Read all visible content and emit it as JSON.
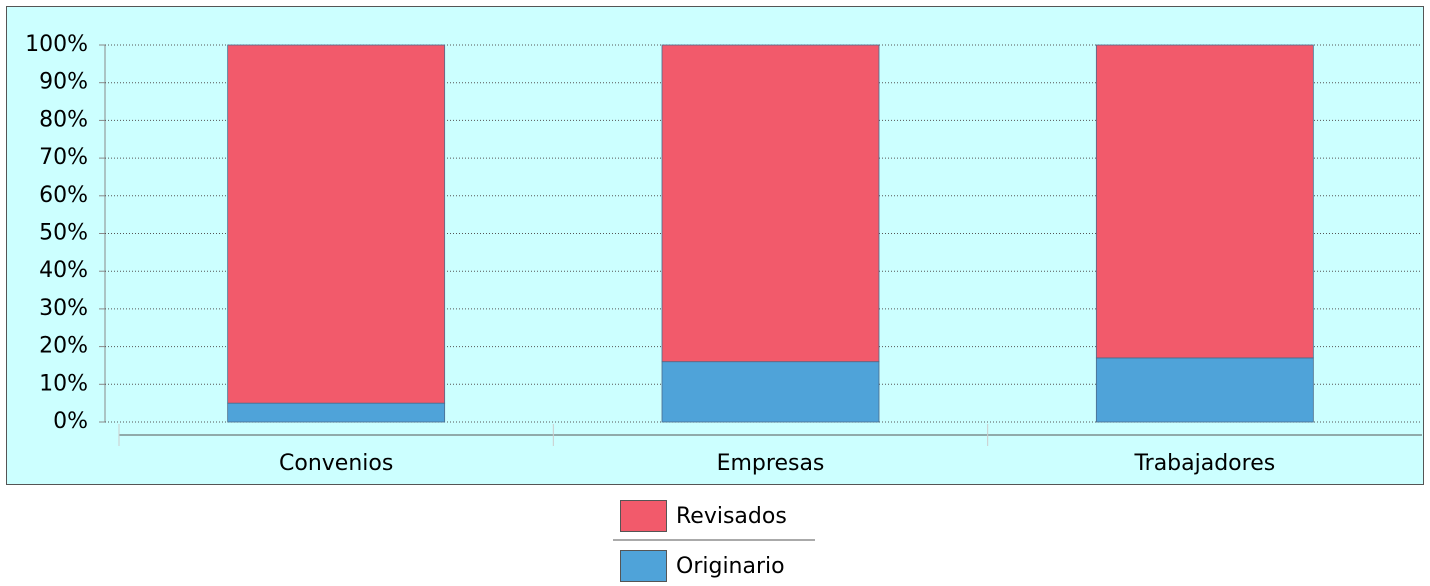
{
  "chart_data": {
    "type": "stacked_bar",
    "categories": [
      "Convenios",
      "Empresas",
      "Trabajadores"
    ],
    "series": [
      {
        "name": "Originario",
        "color": "#4fa3d9",
        "values": [
          5,
          16,
          17
        ]
      },
      {
        "name": "Revisados",
        "color": "#f25a6b",
        "values": [
          95,
          84,
          83
        ]
      }
    ],
    "ylim": [
      0,
      100
    ],
    "yticks": [
      {
        "value": 0,
        "label": "0%"
      },
      {
        "value": 10,
        "label": "10%"
      },
      {
        "value": 20,
        "label": "20%"
      },
      {
        "value": 30,
        "label": "30%"
      },
      {
        "value": 40,
        "label": "40%"
      },
      {
        "value": 50,
        "label": "50%"
      },
      {
        "value": 60,
        "label": "60%"
      },
      {
        "value": 70,
        "label": "70%"
      },
      {
        "value": 80,
        "label": "80%"
      },
      {
        "value": 90,
        "label": "90%"
      },
      {
        "value": 100,
        "label": "100%"
      }
    ],
    "grid": true
  }
}
